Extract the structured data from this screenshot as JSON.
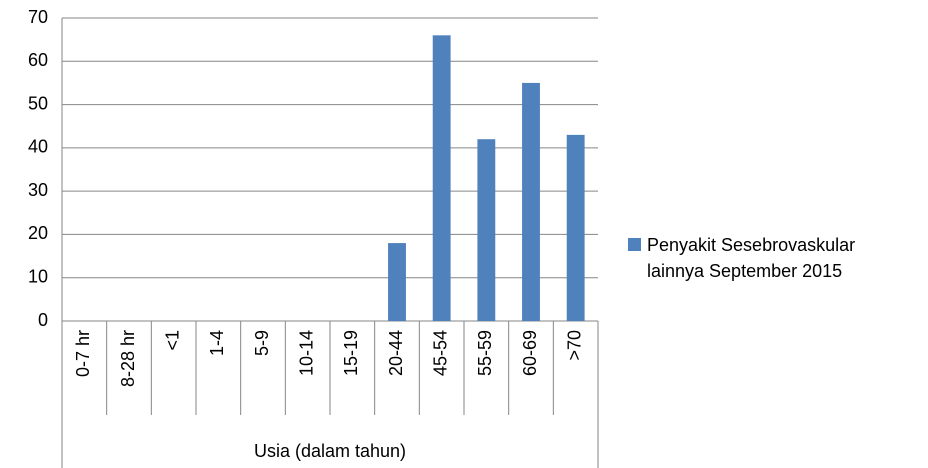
{
  "chart_data": {
    "type": "bar",
    "categories": [
      "0-7 hr",
      "8-28 hr",
      "<1",
      "1-4",
      "5-9",
      "10-14",
      "15-19",
      "20-44",
      "45-54",
      "55-59",
      "60-69",
      ">70"
    ],
    "series": [
      {
        "name": "Penyakit Sesebrovaskular lainnya September 2015",
        "color": "#4f81bd",
        "values": [
          0,
          0,
          0,
          0,
          0,
          0,
          0,
          18,
          66,
          42,
          55,
          43
        ]
      }
    ],
    "xlabel": "Usia (dalam tahun)",
    "ylim": [
      0,
      70
    ],
    "yticks": [
      0,
      10,
      20,
      30,
      40,
      50,
      60,
      70
    ],
    "grid": true,
    "legend": "right"
  }
}
